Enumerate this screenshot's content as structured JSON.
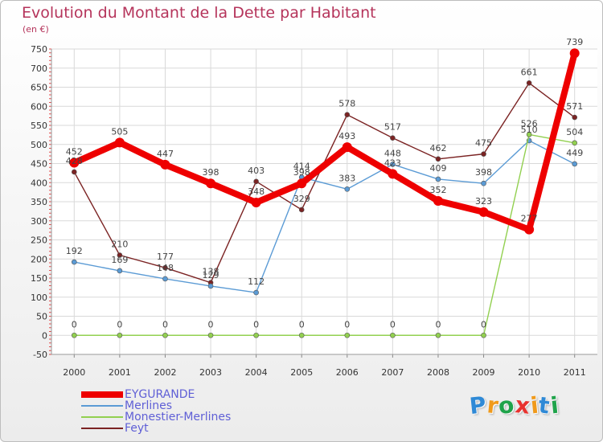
{
  "title": "Evolution du Montant de la Dette par Habitant",
  "unit_label": "(en €)",
  "brand": {
    "letters": [
      "P",
      "r",
      "o",
      "x",
      "i",
      "t",
      "i"
    ],
    "colors": [
      "#2e89d6",
      "#f09a1b",
      "#1fa34a",
      "#e8322f",
      "#f09a1b",
      "#2e89d6",
      "#1fa34a"
    ]
  },
  "chart_data": {
    "type": "line",
    "title": "Evolution du Montant de la Dette par Habitant",
    "ylabel": "(en €)",
    "xlabel": "",
    "categories": [
      "2000",
      "2001",
      "2002",
      "2003",
      "2004",
      "2005",
      "2006",
      "2007",
      "2008",
      "2009",
      "2010",
      "2011"
    ],
    "ylim": [
      -50,
      750
    ],
    "yticks": [
      -50,
      0,
      50,
      100,
      150,
      200,
      250,
      300,
      350,
      400,
      450,
      500,
      550,
      600,
      650,
      700,
      750
    ],
    "grid": true,
    "legend": "bottom-left",
    "series": [
      {
        "name": "EYGURANDE",
        "color": "#ee0000",
        "values": [
          452,
          505,
          447,
          398,
          348,
          398,
          493,
          423,
          352,
          323,
          277,
          739
        ]
      },
      {
        "name": "Merlines",
        "color": "#5b9bd5",
        "values": [
          192,
          169,
          148,
          129,
          112,
          414,
          383,
          448,
          409,
          398,
          510,
          449
        ]
      },
      {
        "name": "Monestier-Merlines",
        "color": "#92d050",
        "values": [
          0,
          0,
          0,
          0,
          0,
          0,
          0,
          0,
          0,
          0,
          526,
          504
        ]
      },
      {
        "name": "Feyt",
        "color": "#7b2323",
        "values": [
          428,
          210,
          177,
          138,
          403,
          329,
          578,
          517,
          462,
          475,
          661,
          571
        ]
      }
    ]
  }
}
